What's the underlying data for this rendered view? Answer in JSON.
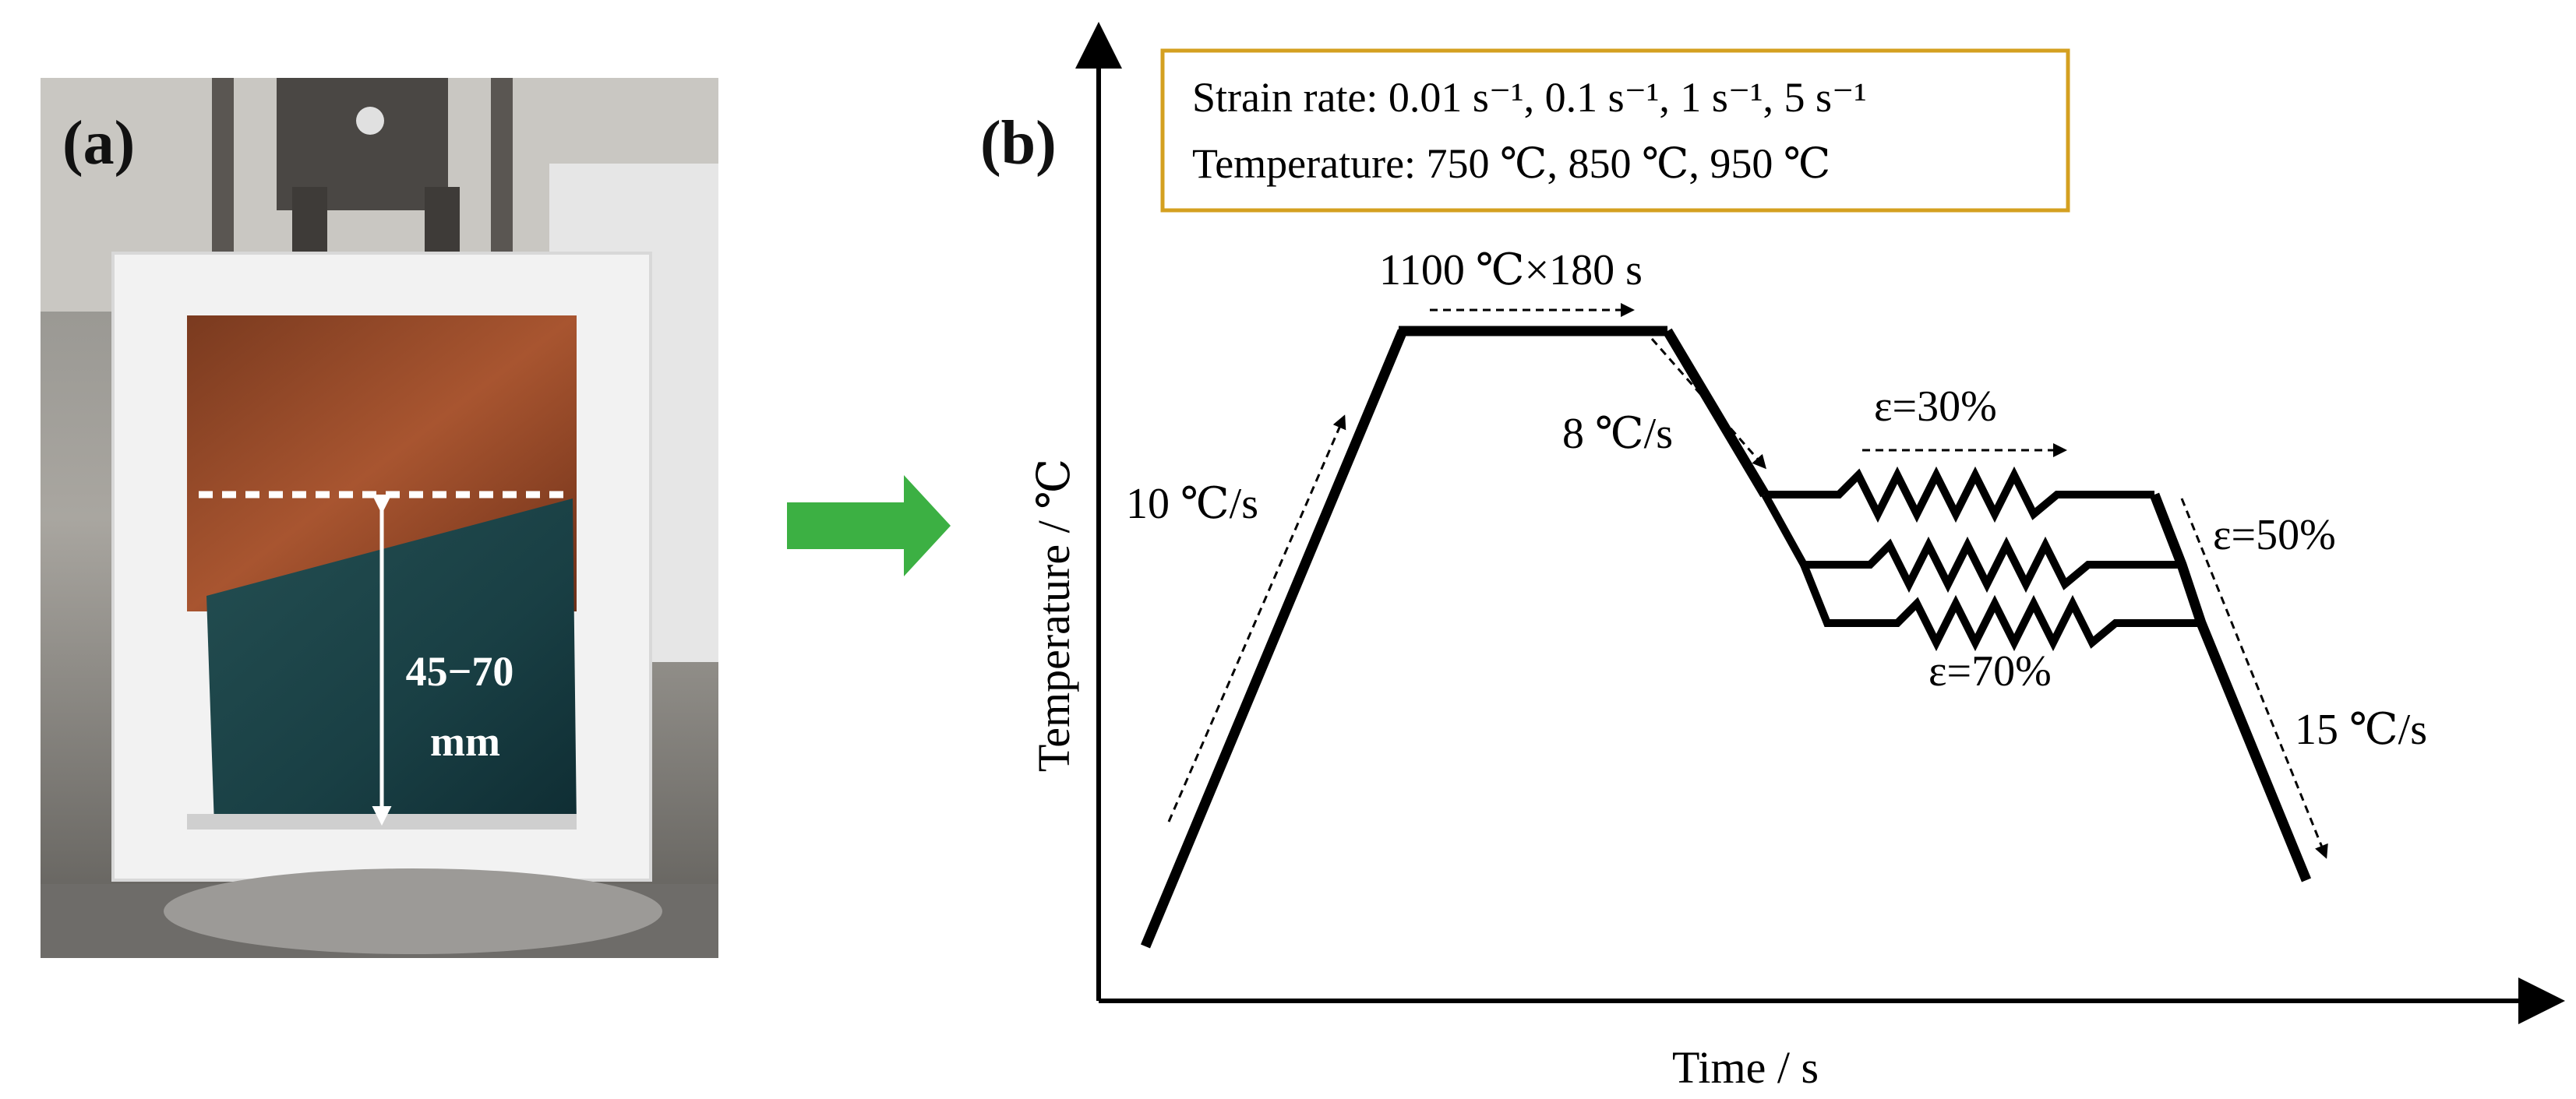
{
  "panel_a": {
    "label": "(a)",
    "measurement_line1": "45−70",
    "measurement_line2": "mm"
  },
  "panel_b": {
    "label": "(b)",
    "info_box": {
      "strain_rate": "Strain rate: 0.01 s⁻¹, 0.1 s⁻¹, 1 s⁻¹, 5 s⁻¹",
      "temperature": "Temperature: 750 ℃, 850 ℃, 950 ℃"
    },
    "y_axis_label": "Temperature / ℃",
    "x_axis_label": "Time / s",
    "annotations": {
      "hold": "1100 ℃×180 s",
      "heating_rate": "10 ℃/s",
      "cooling_rate_1": "8 ℃/s",
      "cooling_rate_2": "15 ℃/s",
      "strain_30": "ε=30%",
      "strain_50": "ε=50%",
      "strain_70": "ε=70%"
    }
  },
  "colors": {
    "arrow_green": "#3cb043",
    "info_box_border": "#d4a020",
    "line": "#000000",
    "copper": "#9a4a2a",
    "specimen": "#1d4a4d",
    "insulation": "#f2f2f2"
  }
}
